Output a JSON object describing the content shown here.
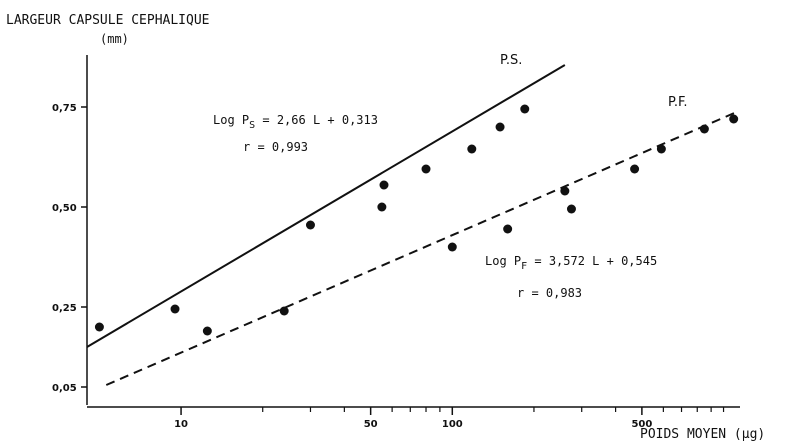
{
  "chart_data": {
    "type": "scatter",
    "ylabel_main": "LARGEUR CAPSULE CEPHALIQUE",
    "ylabel_unit": "(mm)",
    "xlabel": "POIDS MOYEN (µg)",
    "x_scale": "log",
    "xlim": [
      4.5,
      1150
    ],
    "ylim": [
      0.0,
      0.88
    ],
    "x_ticks": [
      {
        "value": 10,
        "label": "10"
      },
      {
        "value": 50,
        "label": "50"
      },
      {
        "value": 100,
        "label": "100"
      },
      {
        "value": 500,
        "label": "500"
      }
    ],
    "x_minor_ticks": [
      20,
      30,
      40,
      60,
      70,
      80,
      90,
      200,
      300,
      400,
      600,
      700,
      800,
      900,
      1000
    ],
    "y_ticks": [
      {
        "value": 0.05,
        "label": "0,05"
      },
      {
        "value": 0.25,
        "label": "0,25"
      },
      {
        "value": 0.5,
        "label": "0,50"
      },
      {
        "value": 0.75,
        "label": "0,75"
      }
    ],
    "series": [
      {
        "name": "P.S.",
        "line_style": "solid",
        "points": [
          {
            "x": 5.0,
            "y": 0.2
          },
          {
            "x": 9.5,
            "y": 0.245
          },
          {
            "x": 30,
            "y": 0.455
          },
          {
            "x": 55,
            "y": 0.5
          },
          {
            "x": 56,
            "y": 0.555
          },
          {
            "x": 80,
            "y": 0.595
          },
          {
            "x": 118,
            "y": 0.645
          },
          {
            "x": 150,
            "y": 0.7
          },
          {
            "x": 185,
            "y": 0.745
          }
        ],
        "fit_line": [
          {
            "x": 4.5,
            "y": 0.15
          },
          {
            "x": 260,
            "y": 0.855
          }
        ],
        "equation_parts": [
          "Log P",
          "S",
          " = 2,66 L + 0,313"
        ],
        "r": "r = 0,993"
      },
      {
        "name": "P.F.",
        "line_style": "dashed",
        "points": [
          {
            "x": 12.5,
            "y": 0.19
          },
          {
            "x": 24,
            "y": 0.24
          },
          {
            "x": 100,
            "y": 0.4
          },
          {
            "x": 160,
            "y": 0.445
          },
          {
            "x": 260,
            "y": 0.54
          },
          {
            "x": 275,
            "y": 0.495
          },
          {
            "x": 470,
            "y": 0.595
          },
          {
            "x": 590,
            "y": 0.645
          },
          {
            "x": 850,
            "y": 0.695
          },
          {
            "x": 1090,
            "y": 0.72
          }
        ],
        "fit_line": [
          {
            "x": 5.3,
            "y": 0.055
          },
          {
            "x": 1140,
            "y": 0.74
          }
        ],
        "equation_parts": [
          "Log P",
          "F",
          " = 3,572 L + 0,545"
        ],
        "r": "r = 0,983"
      }
    ]
  }
}
